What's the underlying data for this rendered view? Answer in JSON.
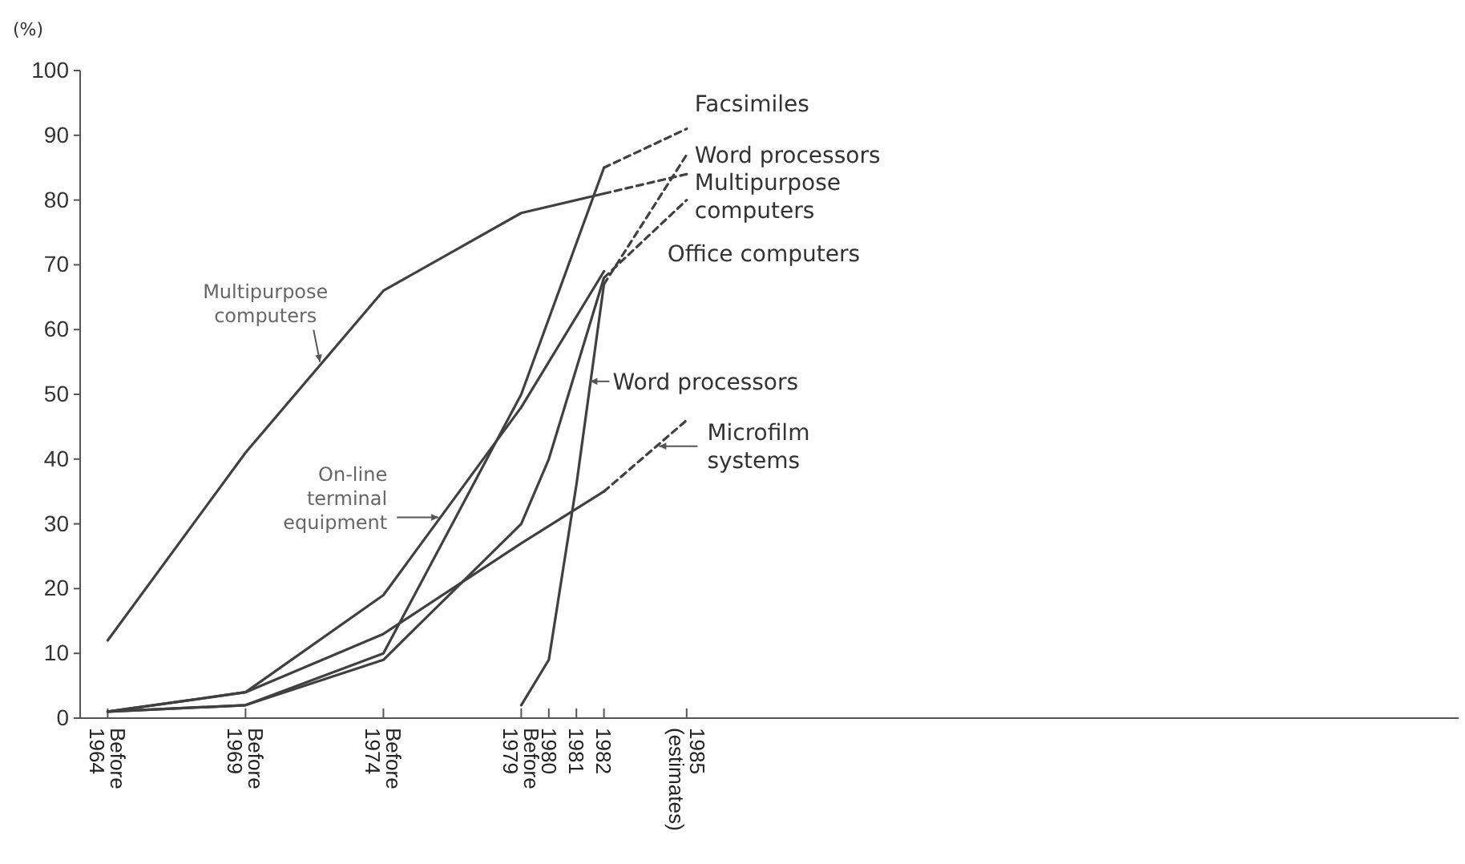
{
  "chart_data": {
    "type": "line",
    "ylabel": "(%)",
    "xlim": [
      1963,
      2013
    ],
    "ylim": [
      0,
      100
    ],
    "xticks": [
      {
        "value": 1964,
        "label": "Before 1964"
      },
      {
        "value": 1969,
        "label": "Before 1969"
      },
      {
        "value": 1974,
        "label": "Before 1974"
      },
      {
        "value": 1979,
        "label": "Before 1979"
      },
      1980,
      1981,
      1982,
      {
        "value": 1985,
        "label": "1985 (estimates)"
      }
    ],
    "yticks": [
      0,
      10,
      20,
      30,
      40,
      50,
      60,
      70,
      80,
      90,
      100
    ],
    "series": [
      {
        "color": "#404040",
        "x": [
          1964,
          1969,
          1974,
          1979,
          1982
        ],
        "values": [
          12,
          41,
          66,
          78,
          81
        ]
      },
      {
        "color": "#404040",
        "x": [
          1964,
          1969,
          1974,
          1979,
          1982
        ],
        "values": [
          1,
          2,
          10,
          50,
          85
        ]
      },
      {
        "color": "#404040",
        "x": [
          1964,
          1969,
          1974,
          1979,
          1980,
          1982
        ],
        "values": [
          1,
          2,
          9,
          30,
          40,
          68
        ]
      },
      {
        "color": "#404040",
        "x": [
          1964,
          1969,
          1974,
          1979,
          1982
        ],
        "values": [
          1,
          4,
          19,
          48,
          69
        ]
      },
      {
        "color": "#404040",
        "x": [
          1964,
          1969,
          1974,
          1979,
          1982
        ],
        "values": [
          1,
          4,
          13,
          27,
          35
        ]
      },
      {
        "color": "#404040",
        "x": [
          1979,
          1980,
          1981,
          1982
        ],
        "values": [
          2,
          9,
          36,
          67
        ]
      },
      {
        "color": "#404040",
        "line_style": "dashed",
        "x": [
          1982,
          1985
        ],
        "values": [
          85,
          91
        ]
      },
      {
        "color": "#404040",
        "line_style": "dashed",
        "x": [
          1982,
          1985
        ],
        "values": [
          67,
          87
        ]
      },
      {
        "color": "#404040",
        "line_style": "dashed",
        "x": [
          1982,
          1985
        ],
        "values": [
          81,
          84
        ]
      },
      {
        "color": "#404040",
        "line_style": "dashed",
        "x": [
          1982,
          1985
        ],
        "values": [
          68,
          80
        ]
      },
      {
        "color": "#404040",
        "line_style": "dashed",
        "x": [
          1982,
          1985
        ],
        "values": [
          35,
          46
        ]
      }
    ],
    "annotations": [
      {
        "text": "Facsimiles",
        "x": 1985,
        "y": 91
      },
      {
        "text": "Word processors",
        "x": 1985,
        "y": 87
      },
      {
        "text": "Multipurpose computers",
        "x": 1985,
        "y": 84
      },
      {
        "text": "Office computers",
        "x": 1985,
        "y": 80
      },
      {
        "text": "Word processors",
        "x": 1981.5,
        "y": 52
      },
      {
        "text": "Microfilm systems",
        "x": 1984,
        "y": 42
      },
      {
        "text": "Multipurpose computers",
        "x": 1971.7,
        "y": 55
      },
      {
        "text": "On-line terminal equipment",
        "x": 1976,
        "y": 31
      }
    ]
  }
}
